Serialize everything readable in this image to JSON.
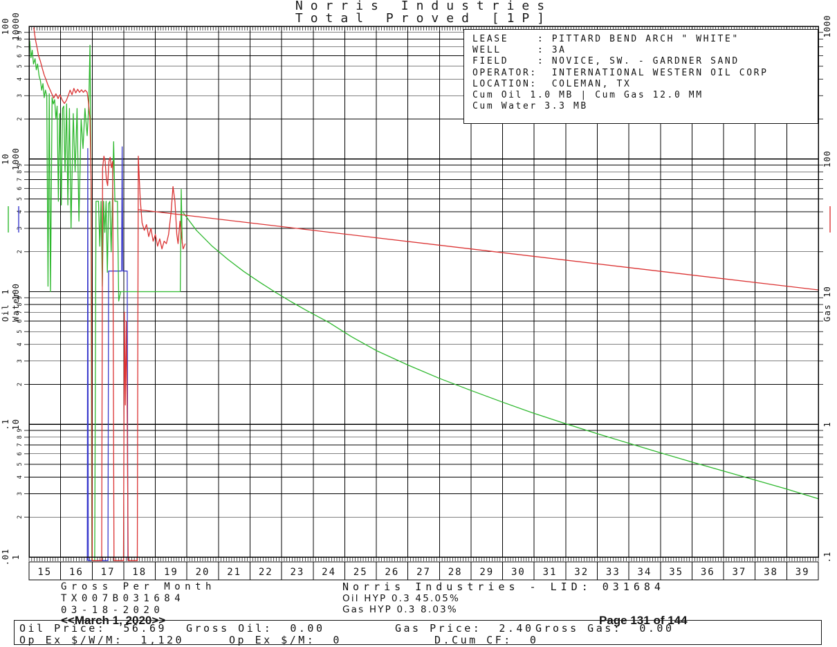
{
  "header": {
    "title_line1": "Norris Industries",
    "title_line2": "Total Proved [1P]"
  },
  "info_box": {
    "lines": [
      "LEASE    : PITTARD BEND ARCH \" WHITE\"",
      "WELL     : 3A",
      "FIELD    : NOVICE, SW. - GARDNER SAND",
      "OPERATOR:  INTERNATIONAL WESTERN OIL CORP",
      "LOCATION:  COLEMAN, TX",
      "",
      "Cum Oil 1.0 MB | Cum Gas 12.0 MM",
      "Cum Water 3.3 MB"
    ]
  },
  "footer": {
    "left_lines": [
      "Gross Per Month",
      "TX007B031684",
      "03-18-2020"
    ],
    "center_title": "Norris Industries - LID: 031684",
    "center_lines": [
      "Oil HYP 0.3 45.05%",
      "Gas HYP 0.3 8.03%"
    ]
  },
  "bottom_bar": {
    "row1": [
      "Oil Price:  56.69",
      "Gross Oil:  0.00",
      "Gas Price:  2.40",
      "Gross Gas:  0.00"
    ],
    "row2": [
      "Op Ex $/W/M:  1,120",
      "Op Ex $/M:  0",
      "D.Cum CF:  0"
    ],
    "overlay_date": "<<March 1, 2020>>",
    "overlay_page": "Page 131 of 144"
  },
  "chart_data": {
    "type": "line",
    "title": "Norris Industries - Total Proved [1P]",
    "x_axis": {
      "range": [
        2015,
        2040
      ],
      "year_labels": [
        "15",
        "16",
        "17",
        "18",
        "19",
        "20",
        "21",
        "22",
        "23",
        "24",
        "25",
        "26",
        "27",
        "28",
        "29",
        "30",
        "31",
        "32",
        "33",
        "34",
        "35",
        "36",
        "37",
        "38",
        "39"
      ],
      "months_per_year": 12
    },
    "grid": "log-4-decade",
    "minor_tick_digits": [
      "9",
      "8",
      "7",
      "6",
      "5",
      "4",
      "3",
      "2"
    ],
    "y_axes": [
      {
        "id": "oil",
        "legend": "Oil",
        "color": "#2eb82e",
        "side": "left",
        "min": 0.01,
        "max": 100,
        "decade_labels": [
          "100",
          "10",
          "1",
          ".1",
          ".01"
        ]
      },
      {
        "id": "water",
        "legend": "Water",
        "color": "#3838cc",
        "side": "left",
        "min": 1,
        "max": 10000,
        "decade_labels": [
          "10000",
          "1000",
          "100",
          "10",
          "1"
        ]
      },
      {
        "id": "gas",
        "legend": "Gas",
        "color": "#db3232",
        "side": "right",
        "min": 0.1,
        "max": 1000,
        "decade_labels": [
          "1000",
          "100",
          "10",
          "1",
          ".1"
        ]
      }
    ],
    "series": [
      {
        "name": "water-history",
        "axis": "water",
        "points": [
          [
            2016.845,
            0.94
          ],
          [
            2016.86,
            1200
          ],
          [
            2016.875,
            0.94
          ],
          [
            2017.5,
            0.94
          ],
          [
            2017.52,
            143
          ],
          [
            2017.93,
            143
          ],
          [
            2017.95,
            1235
          ],
          [
            2017.97,
            143
          ],
          [
            2018.11,
            143
          ],
          [
            2018.13,
            0.94
          ]
        ]
      },
      {
        "name": "oil-history",
        "axis": "oil",
        "points": [
          [
            2015.02,
            78
          ],
          [
            2015.06,
            58
          ],
          [
            2015.1,
            66
          ],
          [
            2015.14,
            52
          ],
          [
            2015.19,
            57
          ],
          [
            2015.23,
            47
          ],
          [
            2015.27,
            52
          ],
          [
            2015.32,
            42
          ],
          [
            2015.36,
            39
          ],
          [
            2015.4,
            33
          ],
          [
            2015.44,
            37
          ],
          [
            2015.48,
            29
          ],
          [
            2015.52,
            33
          ],
          [
            2015.56,
            30
          ],
          [
            2015.6,
            1.1
          ],
          [
            2015.64,
            31
          ],
          [
            2015.68,
            1.0
          ],
          [
            2015.73,
            29
          ],
          [
            2015.77,
            26
          ],
          [
            2015.81,
            28
          ],
          [
            2015.85,
            20
          ],
          [
            2015.89,
            25
          ],
          [
            2015.93,
            4.8
          ],
          [
            2015.97,
            22
          ],
          [
            2016.02,
            4.5
          ],
          [
            2016.06,
            24
          ],
          [
            2016.1,
            25
          ],
          [
            2016.14,
            8
          ],
          [
            2016.19,
            26
          ],
          [
            2016.23,
            4.5
          ],
          [
            2016.28,
            24
          ],
          [
            2016.33,
            3
          ],
          [
            2016.4,
            22
          ],
          [
            2016.46,
            8
          ],
          [
            2016.52,
            24
          ],
          [
            2016.58,
            3.4
          ],
          [
            2016.65,
            20
          ],
          [
            2016.71,
            12
          ],
          [
            2016.77,
            24
          ],
          [
            2016.84,
            15
          ],
          [
            2016.89,
            25
          ],
          [
            2016.93,
            72
          ],
          [
            2016.96,
            10
          ],
          [
            2016.99,
            0.0094
          ],
          [
            2017.08,
            0.0094
          ],
          [
            2017.12,
            4.8
          ],
          [
            2017.2,
            4.8
          ],
          [
            2017.24,
            2.2
          ],
          [
            2017.28,
            4.8
          ],
          [
            2017.32,
            1.1
          ],
          [
            2017.36,
            4.8
          ],
          [
            2017.4,
            2.8
          ],
          [
            2017.44,
            4.8
          ],
          [
            2017.48,
            1.4
          ],
          [
            2017.52,
            4.6
          ],
          [
            2017.56,
            4.8
          ],
          [
            2017.6,
            2.0
          ],
          [
            2017.64,
            4.8
          ],
          [
            2017.68,
            13.5
          ],
          [
            2017.72,
            4.8
          ],
          [
            2017.8,
            4.8
          ],
          [
            2017.84,
            0.85
          ],
          [
            2017.9,
            1.0
          ],
          [
            2019.79,
            1.0
          ],
          [
            2019.82,
            5.9
          ],
          [
            2019.85,
            2.3
          ]
        ]
      },
      {
        "name": "oil-forecast",
        "axis": "oil",
        "points": [
          [
            2019.88,
            3.95
          ],
          [
            2020.3,
            2.9
          ],
          [
            2020.8,
            2.2
          ],
          [
            2021.3,
            1.75
          ],
          [
            2021.8,
            1.42
          ],
          [
            2022.3,
            1.18
          ],
          [
            2022.8,
            0.99
          ],
          [
            2023.3,
            0.84
          ],
          [
            2023.8,
            0.72
          ],
          [
            2024.5,
            0.585
          ],
          [
            2025.2,
            0.46
          ],
          [
            2026,
            0.36
          ],
          [
            2027,
            0.28
          ],
          [
            2028,
            0.222
          ],
          [
            2029,
            0.18
          ],
          [
            2030,
            0.147
          ],
          [
            2031,
            0.121
          ],
          [
            2032,
            0.101
          ],
          [
            2033,
            0.085
          ],
          [
            2034,
            0.072
          ],
          [
            2035,
            0.061
          ],
          [
            2036,
            0.052
          ],
          [
            2037,
            0.0445
          ],
          [
            2038,
            0.038
          ],
          [
            2039,
            0.0325
          ],
          [
            2040,
            0.0275
          ]
        ]
      },
      {
        "name": "gas-history",
        "axis": "gas",
        "points": [
          [
            2015.15,
            980
          ],
          [
            2015.2,
            800
          ],
          [
            2015.25,
            700
          ],
          [
            2015.3,
            600
          ],
          [
            2015.36,
            545
          ],
          [
            2015.42,
            480
          ],
          [
            2015.48,
            430
          ],
          [
            2015.54,
            395
          ],
          [
            2015.6,
            360
          ],
          [
            2015.66,
            335
          ],
          [
            2015.72,
            310
          ],
          [
            2015.78,
            288
          ],
          [
            2015.85,
            310
          ],
          [
            2015.92,
            285
          ],
          [
            2015.98,
            305
          ],
          [
            2016.05,
            278
          ],
          [
            2016.12,
            262
          ],
          [
            2016.18,
            276
          ],
          [
            2016.24,
            300
          ],
          [
            2016.3,
            330
          ],
          [
            2016.36,
            305
          ],
          [
            2016.42,
            340
          ],
          [
            2016.48,
            315
          ],
          [
            2016.54,
            335
          ],
          [
            2016.6,
            318
          ],
          [
            2016.66,
            332
          ],
          [
            2016.72,
            318
          ],
          [
            2016.78,
            330
          ],
          [
            2016.84,
            318
          ],
          [
            2016.88,
            270
          ],
          [
            2016.93,
            200
          ],
          [
            2016.97,
            60
          ],
          [
            2017.0,
            0.094
          ],
          [
            2017.3,
            0.094
          ],
          [
            2017.33,
            85
          ],
          [
            2017.37,
            105
          ],
          [
            2017.41,
            96
          ],
          [
            2017.45,
            70
          ],
          [
            2017.49,
            63
          ],
          [
            2017.53,
            96
          ],
          [
            2017.57,
            103
          ],
          [
            2017.61,
            86
          ],
          [
            2017.65,
            96
          ],
          [
            2017.69,
            0.094
          ],
          [
            2017.99,
            0.094
          ],
          [
            2018.02,
            7
          ],
          [
            2018.05,
            1.4
          ],
          [
            2018.08,
            6
          ],
          [
            2018.11,
            1.2
          ],
          [
            2018.14,
            0.094
          ],
          [
            2018.43,
            0.094
          ],
          [
            2018.46,
            105
          ],
          [
            2018.52,
            50
          ],
          [
            2018.58,
            33
          ],
          [
            2018.65,
            29
          ],
          [
            2018.72,
            32
          ],
          [
            2018.79,
            26
          ],
          [
            2018.86,
            30
          ],
          [
            2018.93,
            24
          ],
          [
            2019.0,
            27
          ],
          [
            2019.07,
            22
          ],
          [
            2019.14,
            25
          ],
          [
            2019.21,
            21
          ],
          [
            2019.28,
            24
          ],
          [
            2019.35,
            23
          ],
          [
            2019.42,
            27
          ],
          [
            2019.5,
            40
          ],
          [
            2019.56,
            62
          ],
          [
            2019.62,
            48
          ],
          [
            2019.68,
            27
          ],
          [
            2019.72,
            23
          ],
          [
            2019.78,
            34
          ],
          [
            2019.83,
            26
          ],
          [
            2019.88,
            21
          ],
          [
            2019.95,
            23
          ]
        ]
      },
      {
        "name": "gas-forecast",
        "axis": "gas",
        "points": [
          [
            2018.46,
            41.5
          ],
          [
            2040.0,
            10.3
          ]
        ]
      }
    ]
  }
}
